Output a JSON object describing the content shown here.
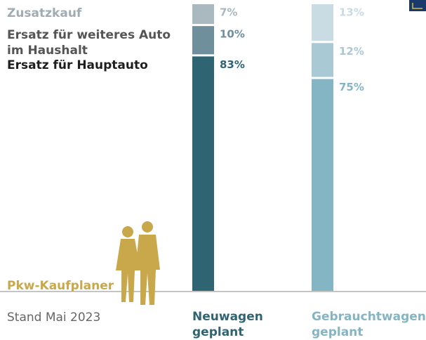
{
  "chart_data": {
    "type": "stacked-bar",
    "categories": [
      "Neuwagen geplant",
      "Gebrauchtwagen geplant"
    ],
    "category_colors": [
      "#2f6472",
      "#84b5c4"
    ],
    "series": [
      {
        "name": "Ersatz für Hauptauto",
        "label_color": "#1e1e1e",
        "colors": [
          "#2f6472",
          "#84b5c4"
        ],
        "values": [
          83,
          75
        ],
        "value_labels": [
          "83%",
          "75%"
        ]
      },
      {
        "name": "Ersatz für weiteres Auto im Haushalt",
        "label_color": "#555555",
        "colors": [
          "#6f8f9c",
          "#a9cad4"
        ],
        "values": [
          10,
          12
        ],
        "value_labels": [
          "10%",
          "12%"
        ]
      },
      {
        "name": "Zusatzkauf",
        "label_color": "#a0acb3",
        "colors": [
          "#aab8c0",
          "#c9dce3"
        ],
        "values": [
          7,
          13
        ],
        "value_labels": [
          "7%",
          "13%"
        ]
      }
    ],
    "ylim": [
      0,
      100
    ],
    "brand": "Pkw-Kaufplaner",
    "footnote": "Stand Mai 2023"
  }
}
